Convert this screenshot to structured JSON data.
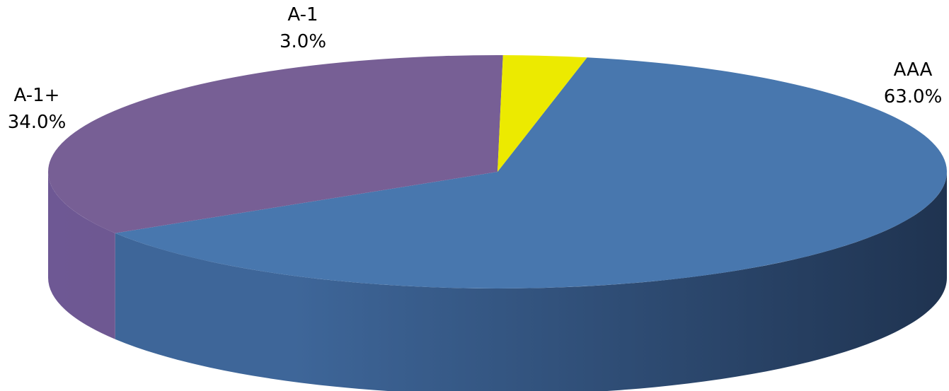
{
  "chart_data": {
    "type": "pie",
    "style": "3d",
    "slices": [
      {
        "name": "AAA",
        "value": 63.0,
        "label": "63.0%",
        "color": "#4877ae"
      },
      {
        "name": "A-1+",
        "value": 34.0,
        "label": "34.0%",
        "color": "#775f95"
      },
      {
        "name": "A-1",
        "value": 3.0,
        "label": "3.0%",
        "color": "#ecea00"
      }
    ],
    "side_colors": {
      "AAA": [
        "#3e6699",
        "#1f3350"
      ],
      "A-1+": [
        "#6e5894",
        "#6d5a8c"
      ]
    },
    "legend": "none"
  }
}
